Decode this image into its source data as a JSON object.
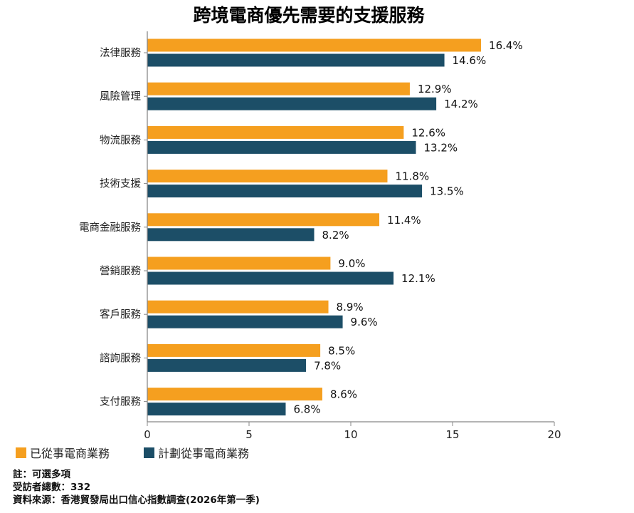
{
  "colors": {
    "series0": "#f59f1f",
    "series1": "#1c4e67",
    "axis": "#888888"
  },
  "chart_data": {
    "type": "bar",
    "orientation": "horizontal",
    "title": "跨境電商優先需要的支援服務",
    "categories": [
      "法律服務",
      "風險管理",
      "物流服務",
      "技術支援",
      "電商金融服務",
      "營銷服務",
      "客戶服務",
      "諮詢服務",
      "支付服務"
    ],
    "series": [
      {
        "name": "已從事電商業務",
        "values": [
          16.4,
          12.9,
          12.6,
          11.8,
          11.4,
          9.0,
          8.9,
          8.5,
          8.6
        ],
        "labels": [
          "16.4%",
          "12.9%",
          "12.6%",
          "11.8%",
          "11.4%",
          "9.0%",
          "8.9%",
          "8.5%",
          "8.6%"
        ]
      },
      {
        "name": "計劃從事電商業務",
        "values": [
          14.6,
          14.2,
          13.2,
          13.5,
          8.2,
          12.1,
          9.6,
          7.8,
          6.8
        ],
        "labels": [
          "14.6%",
          "14.2%",
          "13.2%",
          "13.5%",
          "8.2%",
          "12.1%",
          "9.6%",
          "7.8%",
          "6.8%"
        ]
      }
    ],
    "xlim": [
      0,
      20
    ],
    "xticks": [
      0,
      5,
      10,
      15,
      20
    ],
    "xtick_labels": [
      "0",
      "5",
      "10",
      "15",
      "20"
    ],
    "grid": false,
    "legend_position": "bottom-left"
  },
  "footer": {
    "note": "註：可選多項",
    "respondents": "受訪者總數：332",
    "source": "資料來源：香港貿發局出口信心指數調查(2026年第一季)"
  }
}
